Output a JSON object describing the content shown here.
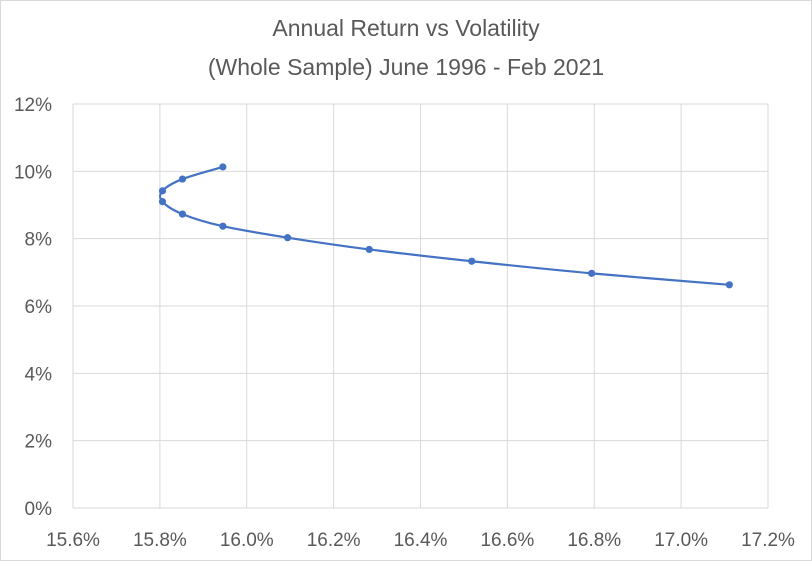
{
  "chart_data": {
    "type": "scatter",
    "title": [
      "Annual Return vs Volatility",
      "(Whole Sample) June 1996 - Feb 2021"
    ],
    "xlabel": "",
    "ylabel": "",
    "xlim": [
      0.156,
      0.172
    ],
    "ylim": [
      0,
      0.12
    ],
    "x_ticks": [
      "15.6%",
      "15.8%",
      "16.0%",
      "16.2%",
      "16.4%",
      "16.6%",
      "16.8%",
      "17.0%",
      "17.2%"
    ],
    "y_ticks": [
      "0%",
      "2%",
      "4%",
      "6%",
      "8%",
      "10%",
      "12%"
    ],
    "grid": {
      "x": true,
      "y": true
    },
    "legend": "none",
    "line_style": "smoothed",
    "series": [
      {
        "color": "#4472c4",
        "points": [
          {
            "x": 0.15945,
            "y": 0.1013
          },
          {
            "x": 0.15852,
            "y": 0.0977
          },
          {
            "x": 0.15806,
            "y": 0.0942
          },
          {
            "x": 0.15806,
            "y": 0.091
          },
          {
            "x": 0.15852,
            "y": 0.0873
          },
          {
            "x": 0.15945,
            "y": 0.0837
          },
          {
            "x": 0.16094,
            "y": 0.0803
          },
          {
            "x": 0.16282,
            "y": 0.0768
          },
          {
            "x": 0.16518,
            "y": 0.0733
          },
          {
            "x": 0.16794,
            "y": 0.0697
          },
          {
            "x": 0.17111,
            "y": 0.0663
          }
        ]
      }
    ]
  }
}
